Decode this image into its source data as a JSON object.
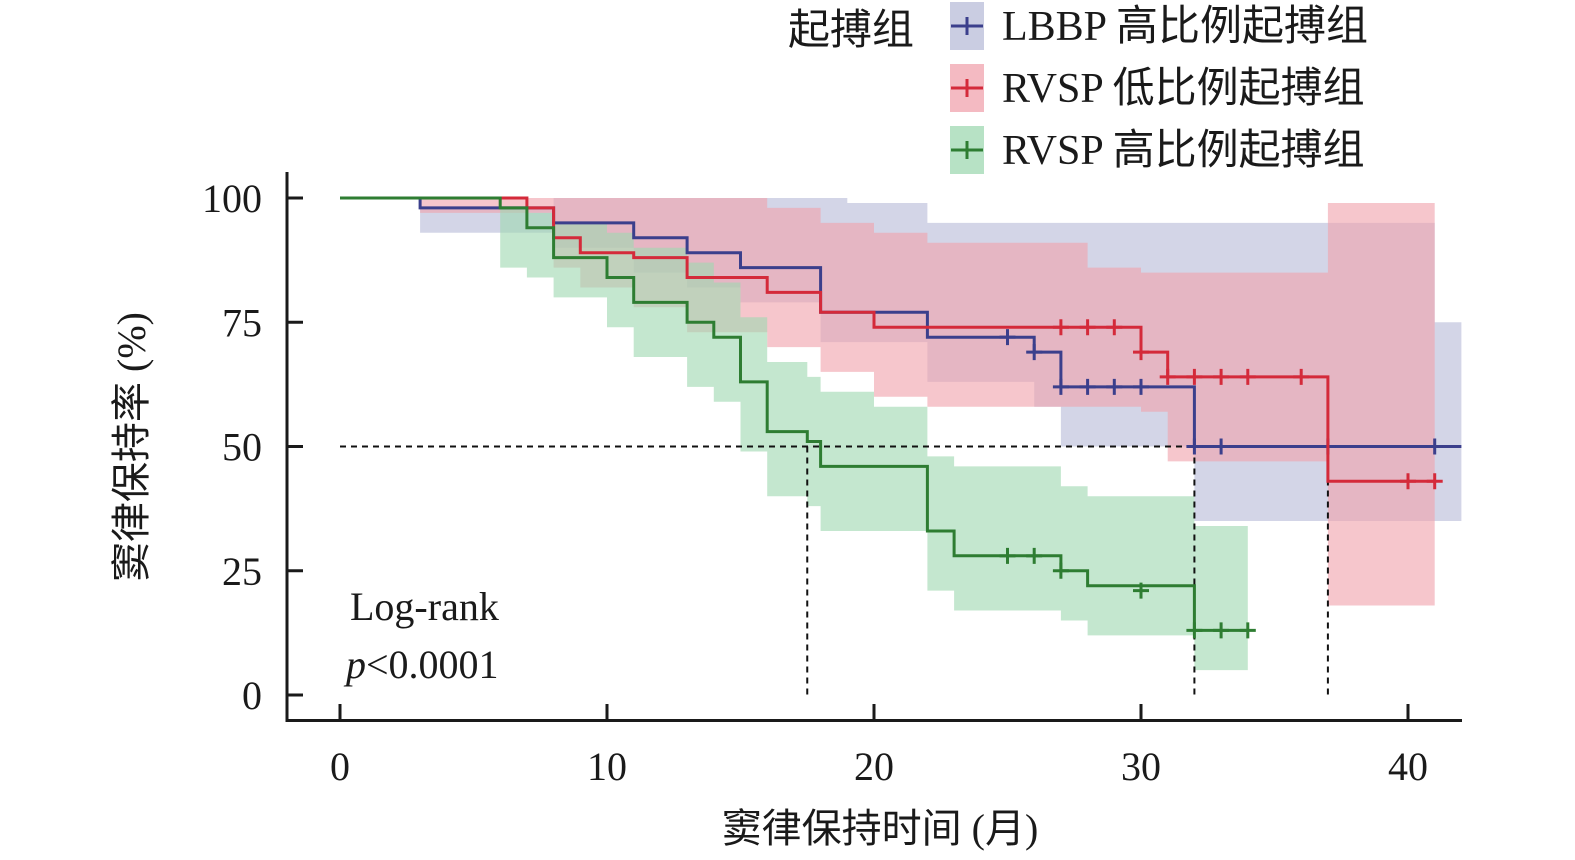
{
  "chart_data": {
    "type": "line",
    "subtype": "kaplan-meier survival curve with confidence bands",
    "xlabel": "窦律保持时间 (月)",
    "ylabel": "窦律保持率 (%)",
    "xlim": [
      0,
      42
    ],
    "ylim": [
      0,
      100
    ],
    "xticks": [
      0,
      10,
      20,
      30,
      40
    ],
    "yticks": [
      0,
      25,
      50,
      75,
      100
    ],
    "grid": false,
    "legend_title": "起搏组",
    "legend_position": "top-right",
    "annotation": {
      "line1": "Log-rank",
      "p_symbol": "p",
      "p_value": "<0.0001"
    },
    "median_reference": {
      "y": 50,
      "x_marks": [
        17.5,
        32,
        37
      ]
    },
    "series": [
      {
        "name": "LBBP 高比例起搏组",
        "color": "#3b3f8c",
        "band_color": "#b8bcd8",
        "steps": [
          [
            0,
            100
          ],
          [
            3,
            98
          ],
          [
            7,
            98
          ],
          [
            8,
            95
          ],
          [
            11,
            92
          ],
          [
            13,
            89
          ],
          [
            15,
            86
          ],
          [
            18,
            83
          ],
          [
            18,
            77
          ],
          [
            22,
            77
          ],
          [
            22,
            72
          ],
          [
            26,
            69
          ],
          [
            27,
            62
          ],
          [
            32,
            62
          ],
          [
            32,
            50
          ],
          [
            41,
            50
          ],
          [
            42,
            50
          ]
        ],
        "band_upper": [
          [
            3,
            98
          ],
          [
            7,
            98
          ],
          [
            8,
            100
          ],
          [
            14,
            100
          ],
          [
            16,
            100
          ],
          [
            19,
            99
          ],
          [
            22,
            99
          ],
          [
            22,
            95
          ],
          [
            40,
            95
          ],
          [
            41,
            75
          ],
          [
            42,
            75
          ]
        ],
        "band_lower": [
          [
            3,
            93
          ],
          [
            7,
            93
          ],
          [
            8,
            90
          ],
          [
            11,
            85
          ],
          [
            13,
            82
          ],
          [
            15,
            79
          ],
          [
            18,
            71
          ],
          [
            22,
            63
          ],
          [
            26,
            58
          ],
          [
            27,
            50
          ],
          [
            32,
            50
          ],
          [
            32,
            35
          ],
          [
            42,
            33
          ]
        ],
        "censored": [
          [
            25,
            72
          ],
          [
            26,
            69
          ],
          [
            27,
            62
          ],
          [
            28,
            62
          ],
          [
            29,
            62
          ],
          [
            30,
            62
          ],
          [
            32,
            50
          ],
          [
            33,
            50
          ],
          [
            37,
            50
          ],
          [
            41,
            50
          ]
        ]
      },
      {
        "name": "RVSP 低比例起搏组",
        "color": "#d42a3a",
        "band_color": "#f0a3ad",
        "steps": [
          [
            0,
            100
          ],
          [
            3,
            100
          ],
          [
            7,
            100
          ],
          [
            7,
            98
          ],
          [
            8,
            92
          ],
          [
            9,
            89
          ],
          [
            11,
            88
          ],
          [
            13,
            84
          ],
          [
            16,
            81
          ],
          [
            18,
            77
          ],
          [
            20,
            74
          ],
          [
            30,
            74
          ],
          [
            30,
            69
          ],
          [
            31,
            64
          ],
          [
            37,
            64
          ],
          [
            37,
            43
          ],
          [
            41,
            43
          ]
        ],
        "band_upper": [
          [
            3,
            100
          ],
          [
            9,
            100
          ],
          [
            12,
            100
          ],
          [
            14,
            100
          ],
          [
            16,
            98
          ],
          [
            18,
            95
          ],
          [
            20,
            93
          ],
          [
            22,
            91
          ],
          [
            25,
            91
          ],
          [
            28,
            86
          ],
          [
            30,
            85
          ],
          [
            31,
            85
          ],
          [
            37,
            85
          ],
          [
            37,
            99
          ],
          [
            41,
            99
          ]
        ],
        "band_lower": [
          [
            3,
            97
          ],
          [
            7,
            97
          ],
          [
            8,
            86
          ],
          [
            9,
            82
          ],
          [
            11,
            78
          ],
          [
            13,
            73
          ],
          [
            16,
            70
          ],
          [
            18,
            65
          ],
          [
            20,
            60
          ],
          [
            22,
            58
          ],
          [
            30,
            57
          ],
          [
            31,
            47
          ],
          [
            37,
            47
          ],
          [
            37,
            18
          ],
          [
            41,
            18
          ]
        ],
        "censored": [
          [
            27,
            74
          ],
          [
            28,
            74
          ],
          [
            29,
            74
          ],
          [
            30,
            69
          ],
          [
            31,
            64
          ],
          [
            32,
            64
          ],
          [
            33,
            64
          ],
          [
            34,
            64
          ],
          [
            36,
            64
          ],
          [
            40,
            43
          ],
          [
            41,
            43
          ]
        ]
      },
      {
        "name": "RVSP 高比例起搏组",
        "color": "#2e7d32",
        "band_color": "#9fd8b2",
        "steps": [
          [
            0,
            100
          ],
          [
            6,
            98
          ],
          [
            7,
            94
          ],
          [
            8,
            88
          ],
          [
            10,
            84
          ],
          [
            11,
            79
          ],
          [
            13,
            75
          ],
          [
            14,
            72
          ],
          [
            15,
            63
          ],
          [
            16,
            53
          ],
          [
            17.5,
            51
          ],
          [
            18,
            46
          ],
          [
            22,
            46
          ],
          [
            22,
            33
          ],
          [
            23,
            28
          ],
          [
            27,
            25
          ],
          [
            28,
            22
          ],
          [
            32,
            22
          ],
          [
            32,
            13
          ],
          [
            34,
            13
          ]
        ],
        "band_upper": [
          [
            3,
            98
          ],
          [
            6,
            98
          ],
          [
            7,
            97
          ],
          [
            8,
            95
          ],
          [
            10,
            93
          ],
          [
            11,
            90
          ],
          [
            13,
            87
          ],
          [
            14,
            83
          ],
          [
            15,
            76
          ],
          [
            16,
            67
          ],
          [
            17.5,
            64
          ],
          [
            18,
            61
          ],
          [
            20,
            58
          ],
          [
            22,
            48
          ],
          [
            23,
            46
          ],
          [
            27,
            42
          ],
          [
            28,
            40
          ],
          [
            32,
            40
          ],
          [
            32,
            34
          ],
          [
            34,
            34
          ]
        ],
        "band_lower": [
          [
            3,
            98
          ],
          [
            6,
            86
          ],
          [
            7,
            84
          ],
          [
            8,
            80
          ],
          [
            10,
            74
          ],
          [
            11,
            68
          ],
          [
            13,
            62
          ],
          [
            14,
            59
          ],
          [
            15,
            49
          ],
          [
            16,
            40
          ],
          [
            17.5,
            38
          ],
          [
            18,
            33
          ],
          [
            22,
            33
          ],
          [
            22,
            21
          ],
          [
            23,
            17
          ],
          [
            27,
            15
          ],
          [
            28,
            12
          ],
          [
            32,
            12
          ],
          [
            32,
            5
          ],
          [
            34,
            5
          ]
        ],
        "censored": [
          [
            25,
            28
          ],
          [
            26,
            28
          ],
          [
            27,
            25
          ],
          [
            30,
            21
          ],
          [
            32,
            13
          ],
          [
            33,
            13
          ],
          [
            34,
            13
          ]
        ]
      }
    ]
  }
}
